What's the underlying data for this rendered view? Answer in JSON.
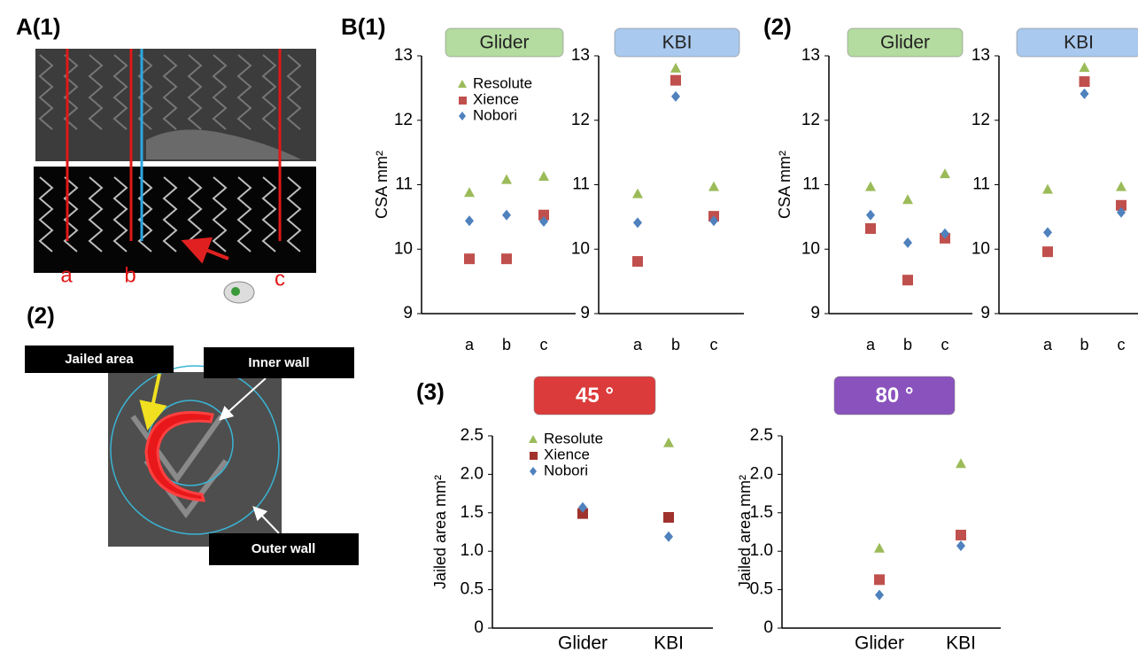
{
  "labels": {
    "a1": "A(1)",
    "a2": "(2)",
    "b1": "B(1)",
    "b2": "(2)",
    "b3": "(3)"
  },
  "image_labels": {
    "a": "a",
    "b": "b",
    "c": "c",
    "jailed": "Jailed area",
    "inner": "Inner wall",
    "outer": "Outer wall"
  },
  "chart_data": [
    {
      "type": "scatter",
      "title": "Glider",
      "title_color": "#b4dba0",
      "ylabel": "CSA mm²",
      "legend": true,
      "categories": [
        "a",
        "b",
        "c"
      ],
      "ylim": [
        9,
        13
      ],
      "yticks": [
        9,
        10,
        11,
        12,
        13
      ],
      "series": [
        {
          "name": "Resolute",
          "color": "#9bbb59",
          "marker": "triangle",
          "values": [
            10.88,
            11.08,
            11.13
          ]
        },
        {
          "name": "Xience",
          "color": "#c0504d",
          "marker": "square",
          "values": [
            9.85,
            9.85,
            10.53
          ]
        },
        {
          "name": "Nobori",
          "color": "#4f81bd",
          "marker": "diamond",
          "values": [
            10.44,
            10.53,
            10.43
          ]
        }
      ]
    },
    {
      "type": "scatter",
      "title": "KBI",
      "title_color": "#a9c9ee",
      "categories": [
        "a",
        "b",
        "c"
      ],
      "ylim": [
        9,
        13
      ],
      "yticks": [
        9,
        10,
        11,
        12,
        13
      ],
      "series": [
        {
          "name": "Resolute",
          "color": "#9bbb59",
          "marker": "triangle",
          "values": [
            10.86,
            12.81,
            10.97
          ]
        },
        {
          "name": "Xience",
          "color": "#c0504d",
          "marker": "square",
          "values": [
            9.81,
            12.62,
            10.51
          ]
        },
        {
          "name": "Nobori",
          "color": "#4f81bd",
          "marker": "diamond",
          "values": [
            10.41,
            12.37,
            10.44
          ]
        }
      ]
    },
    {
      "type": "scatter",
      "title": "Glider",
      "title_color": "#b4dba0",
      "ylabel": "CSA mm²",
      "categories": [
        "a",
        "b",
        "c"
      ],
      "ylim": [
        9,
        13
      ],
      "yticks": [
        9,
        10,
        11,
        12,
        13
      ],
      "series": [
        {
          "name": "Resolute",
          "color": "#9bbb59",
          "marker": "triangle",
          "values": [
            10.97,
            10.77,
            11.17
          ]
        },
        {
          "name": "Xience",
          "color": "#c0504d",
          "marker": "square",
          "values": [
            10.32,
            9.52,
            10.17
          ]
        },
        {
          "name": "Nobori",
          "color": "#4f81bd",
          "marker": "diamond",
          "values": [
            10.53,
            10.1,
            10.24
          ]
        }
      ]
    },
    {
      "type": "scatter",
      "title": "KBI",
      "title_color": "#a9c9ee",
      "categories": [
        "a",
        "b",
        "c"
      ],
      "ylim": [
        9,
        13
      ],
      "yticks": [
        9,
        10,
        11,
        12,
        13
      ],
      "series": [
        {
          "name": "Resolute",
          "color": "#9bbb59",
          "marker": "triangle",
          "values": [
            10.93,
            12.82,
            10.97
          ]
        },
        {
          "name": "Xience",
          "color": "#c0504d",
          "marker": "square",
          "values": [
            9.96,
            12.6,
            10.68
          ]
        },
        {
          "name": "Nobori",
          "color": "#4f81bd",
          "marker": "diamond",
          "values": [
            10.26,
            12.41,
            10.57
          ]
        }
      ]
    },
    {
      "type": "scatter",
      "title": "45 °",
      "title_color": "#dc3b3b",
      "ylabel": "Jailed area mm²",
      "legend": true,
      "categories": [
        "Glider",
        "KBI"
      ],
      "ylim": [
        0,
        2.5
      ],
      "yticks": [
        0,
        0.5,
        {
          "value": 1,
          "label": "1.0"
        },
        1.5,
        {
          "value": 2,
          "label": "2.0"
        },
        2.5
      ],
      "series": [
        {
          "name": "Resolute",
          "color": "#9bbb59",
          "marker": "triangle",
          "values": [
            1.51,
            2.41
          ]
        },
        {
          "name": "Xience",
          "color": "#a0322e",
          "marker": "square",
          "values": [
            1.49,
            1.44
          ]
        },
        {
          "name": "Nobori",
          "color": "#4f81bd",
          "marker": "diamond",
          "values": [
            1.57,
            1.19
          ]
        }
      ]
    },
    {
      "type": "scatter",
      "title": "80 °",
      "title_color": "#8a52bd",
      "ylabel": "Jailed area mm²",
      "categories": [
        "Glider",
        "KBI"
      ],
      "ylim": [
        0,
        2.5
      ],
      "yticks": [
        0,
        0.5,
        {
          "value": 1,
          "label": "1.0"
        },
        1.5,
        {
          "value": 2,
          "label": "2.0"
        },
        2.5
      ],
      "series": [
        {
          "name": "Resolute",
          "color": "#9bbb59",
          "marker": "triangle",
          "values": [
            1.04,
            2.14
          ]
        },
        {
          "name": "Xience",
          "color": "#c0504d",
          "marker": "square",
          "values": [
            0.63,
            1.21
          ]
        },
        {
          "name": "Nobori",
          "color": "#4f81bd",
          "marker": "diamond",
          "values": [
            0.43,
            1.07
          ]
        }
      ]
    }
  ]
}
